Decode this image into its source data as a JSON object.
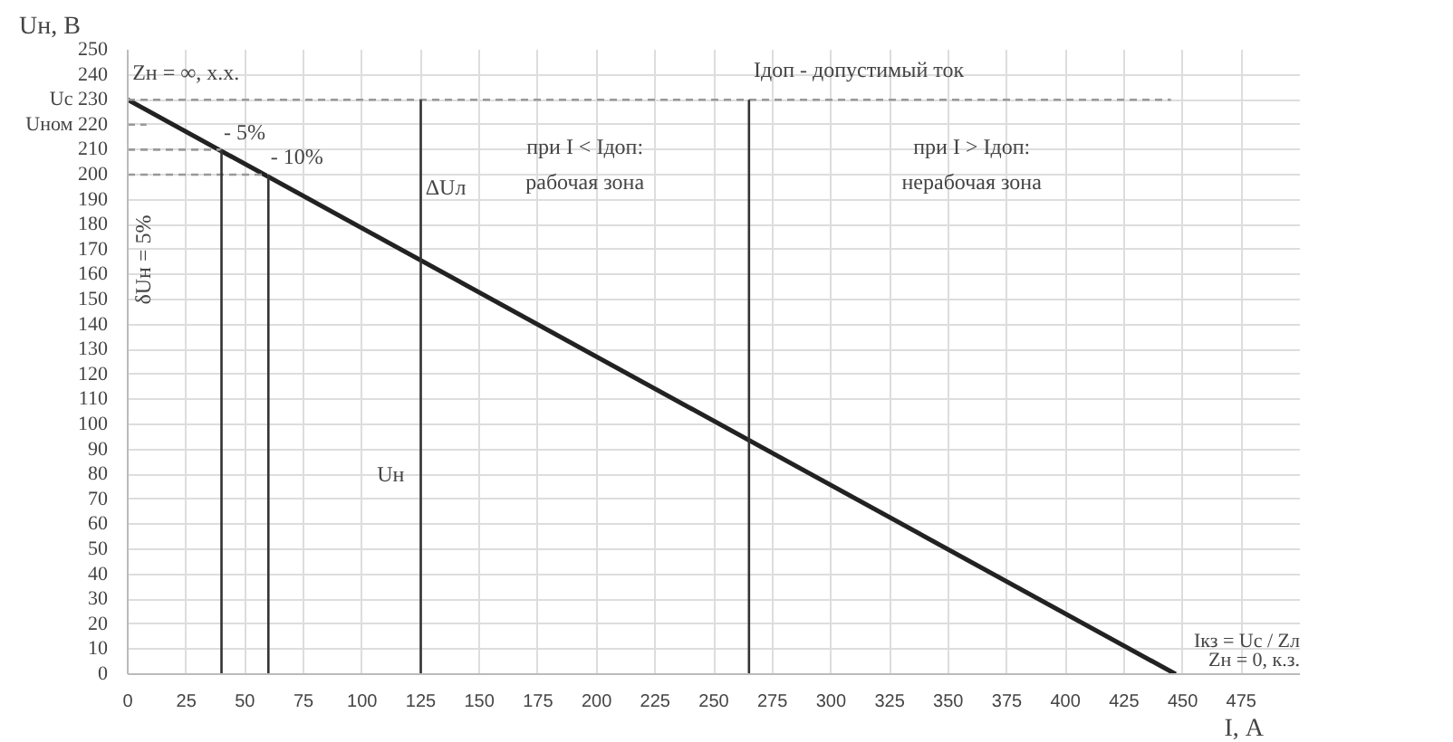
{
  "chart_data": {
    "type": "line",
    "xlabel": "I, А",
    "ylabel": "Uн, В",
    "xlim": [
      0,
      500
    ],
    "xticks": [
      0,
      25,
      50,
      75,
      100,
      125,
      150,
      175,
      200,
      225,
      250,
      275,
      300,
      325,
      350,
      375,
      400,
      425,
      450,
      475
    ],
    "ylim": [
      0,
      250
    ],
    "yticks": [
      0,
      10,
      20,
      30,
      40,
      50,
      60,
      70,
      80,
      90,
      100,
      110,
      120,
      130,
      140,
      150,
      160,
      170,
      180,
      190,
      200,
      210,
      {
        "value": 220,
        "label": "Uном 220"
      },
      {
        "value": 230,
        "label": "Uс 230"
      },
      240,
      250
    ],
    "grid": true,
    "series": [
      {
        "x": [
          0,
          447
        ],
        "values": [
          230,
          0
        ],
        "color": "#222222",
        "line_style": "solid"
      },
      {
        "x": [
          0,
          445
        ],
        "values": [
          230,
          230
        ],
        "color": "#999999",
        "line_style": "dashed"
      },
      {
        "x": [
          0,
          8
        ],
        "values": [
          220,
          220
        ],
        "color": "#999999",
        "line_style": "dashed"
      },
      {
        "x": [
          0,
          40
        ],
        "values": [
          210,
          210
        ],
        "color": "#999999",
        "line_style": "dashed"
      },
      {
        "x": [
          0,
          60
        ],
        "values": [
          200,
          200
        ],
        "color": "#999999",
        "line_style": "dashed"
      },
      {
        "x": [
          40,
          40
        ],
        "values": [
          210,
          0
        ],
        "color": "#333333",
        "line_style": "solid"
      },
      {
        "x": [
          60,
          60
        ],
        "values": [
          200,
          0
        ],
        "color": "#333333",
        "line_style": "solid"
      },
      {
        "x": [
          125,
          125
        ],
        "values": [
          230,
          0
        ],
        "color": "#333333",
        "line_style": "solid"
      },
      {
        "x": [
          265,
          265
        ],
        "values": [
          230,
          0
        ],
        "color": "#333333",
        "line_style": "solid"
      }
    ],
    "annotations": [
      "Zн = ∞, х.х.",
      {
        "text": "- 5%",
        "x": 41,
        "y": 212
      },
      {
        "text": "- 10%",
        "x": 61,
        "y": 202
      },
      "δUн = 5%",
      {
        "text": "ΔUл",
        "x": 127,
        "y": 190
      },
      "Uн",
      "Iдоп - допустимый ток",
      "при I < Iдоп:",
      "рабочая зона",
      "при I > Iдоп:",
      "нерабочая зона",
      {
        "text": "Iкз = Uс / Zл",
        "x": 447,
        "y": 0
      },
      "Zн = 0, к.з."
    ]
  }
}
